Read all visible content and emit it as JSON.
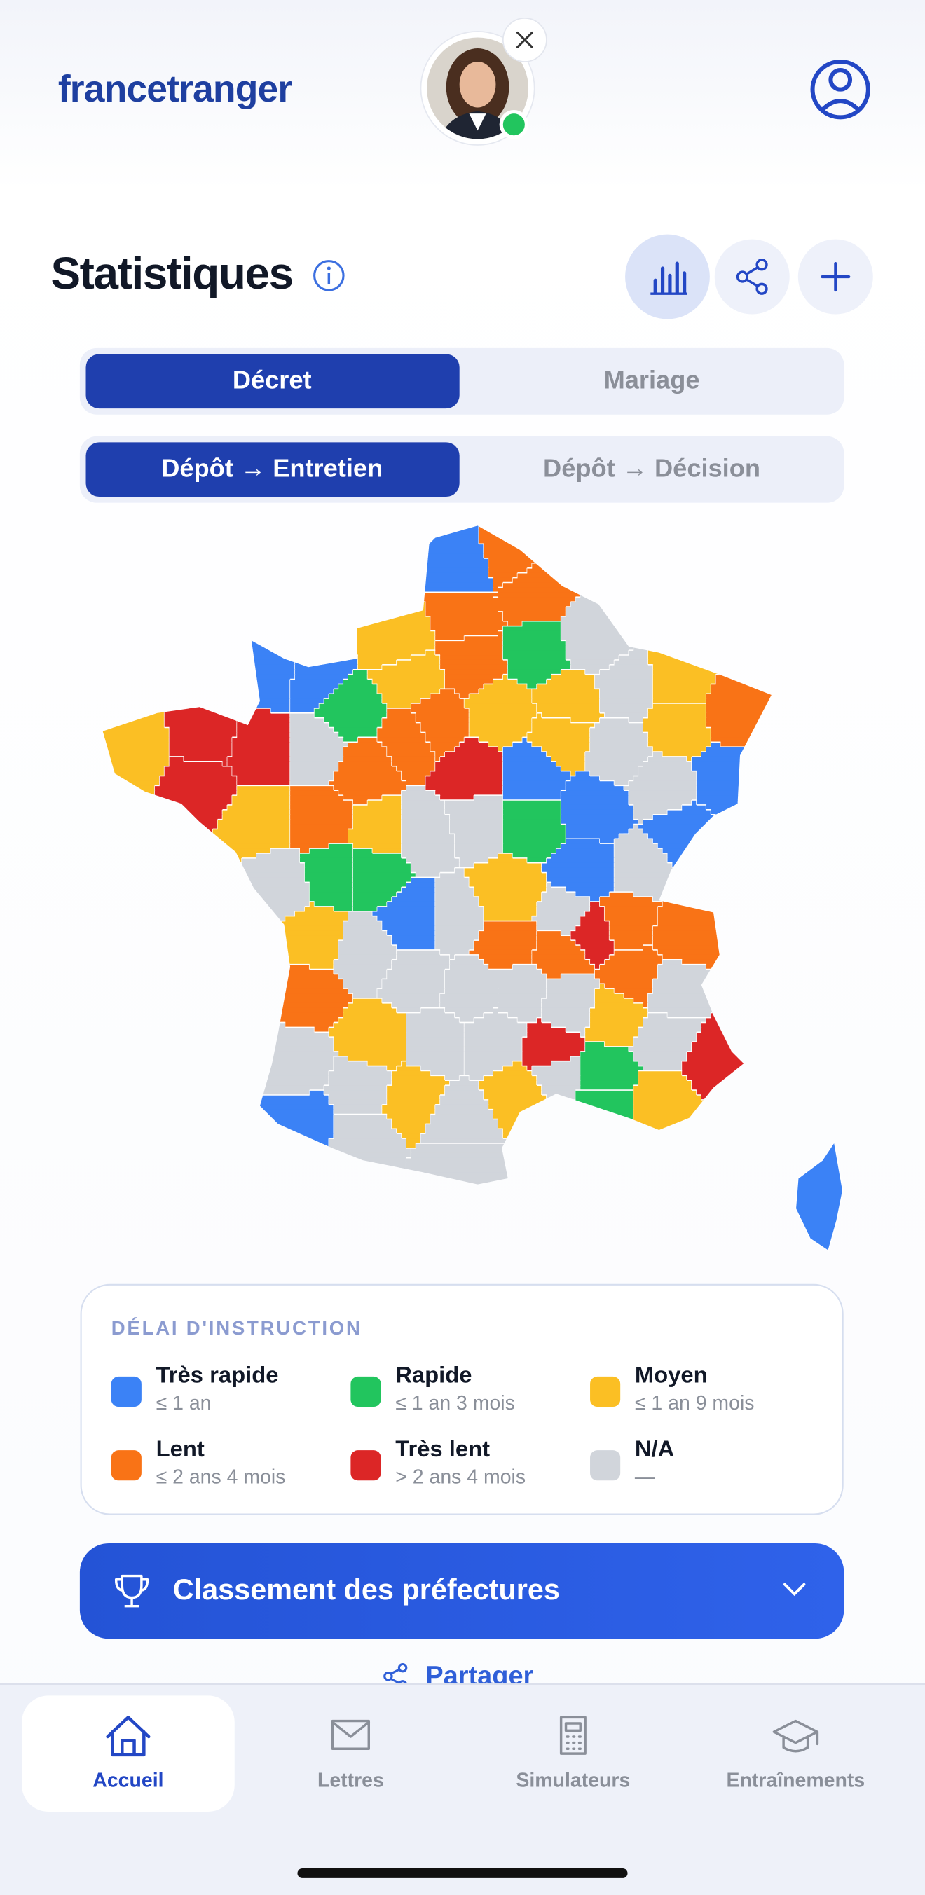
{
  "header": {
    "logo": "francetranger"
  },
  "page": {
    "title": "Statistiques"
  },
  "tabs_primary": {
    "options": [
      "Décret",
      "Mariage"
    ]
  },
  "tabs_secondary": {
    "options": [
      "Dépôt → Entretien",
      "Dépôt → Décision"
    ]
  },
  "legend": {
    "title": "DÉLAI D'INSTRUCTION",
    "items": [
      {
        "label": "Très rapide",
        "detail": "≤ 1 an",
        "color": "#3b82f6"
      },
      {
        "label": "Rapide",
        "detail": "≤ 1 an 3 mois",
        "color": "#22c55e"
      },
      {
        "label": "Moyen",
        "detail": "≤ 1 an 9 mois",
        "color": "#fbbf24"
      },
      {
        "label": "Lent",
        "detail": "≤ 2 ans 4 mois",
        "color": "#f97316"
      },
      {
        "label": "Très lent",
        "detail": "> 2 ans 4 mois",
        "color": "#dc2626"
      },
      {
        "label": "N/A",
        "detail": "—",
        "color": "#d1d5db"
      }
    ]
  },
  "ranking_button": "Classement des préfectures",
  "share_link": "Partager",
  "nav": [
    "Accueil",
    "Lettres",
    "Simulateurs",
    "Entraînements"
  ]
}
